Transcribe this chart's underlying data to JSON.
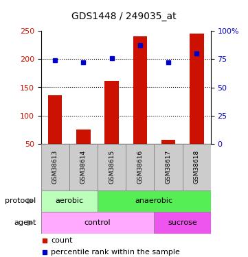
{
  "title": "GDS1448 / 249035_at",
  "samples": [
    "GSM38613",
    "GSM38614",
    "GSM38615",
    "GSM38616",
    "GSM38617",
    "GSM38618"
  ],
  "counts": [
    136,
    76,
    162,
    240,
    57,
    245
  ],
  "percentile_ranks": [
    74,
    72,
    76,
    87,
    72,
    80
  ],
  "ylim_left": [
    50,
    250
  ],
  "ylim_right": [
    0,
    100
  ],
  "yticks_left": [
    50,
    100,
    150,
    200,
    250
  ],
  "yticks_right": [
    0,
    25,
    50,
    75,
    100
  ],
  "bar_color": "#cc1100",
  "dot_color": "#0000cc",
  "protocol_labels": [
    {
      "label": "aerobic",
      "start": 0,
      "end": 2,
      "color": "#bbffbb"
    },
    {
      "label": "anaerobic",
      "start": 2,
      "end": 6,
      "color": "#55ee55"
    }
  ],
  "agent_labels": [
    {
      "label": "control",
      "start": 0,
      "end": 4,
      "color": "#ffaaff"
    },
    {
      "label": "sucrose",
      "start": 4,
      "end": 6,
      "color": "#ee55ee"
    }
  ],
  "bar_width": 0.5,
  "sample_area_bg": "#cccccc",
  "arrow_color": "#999999"
}
